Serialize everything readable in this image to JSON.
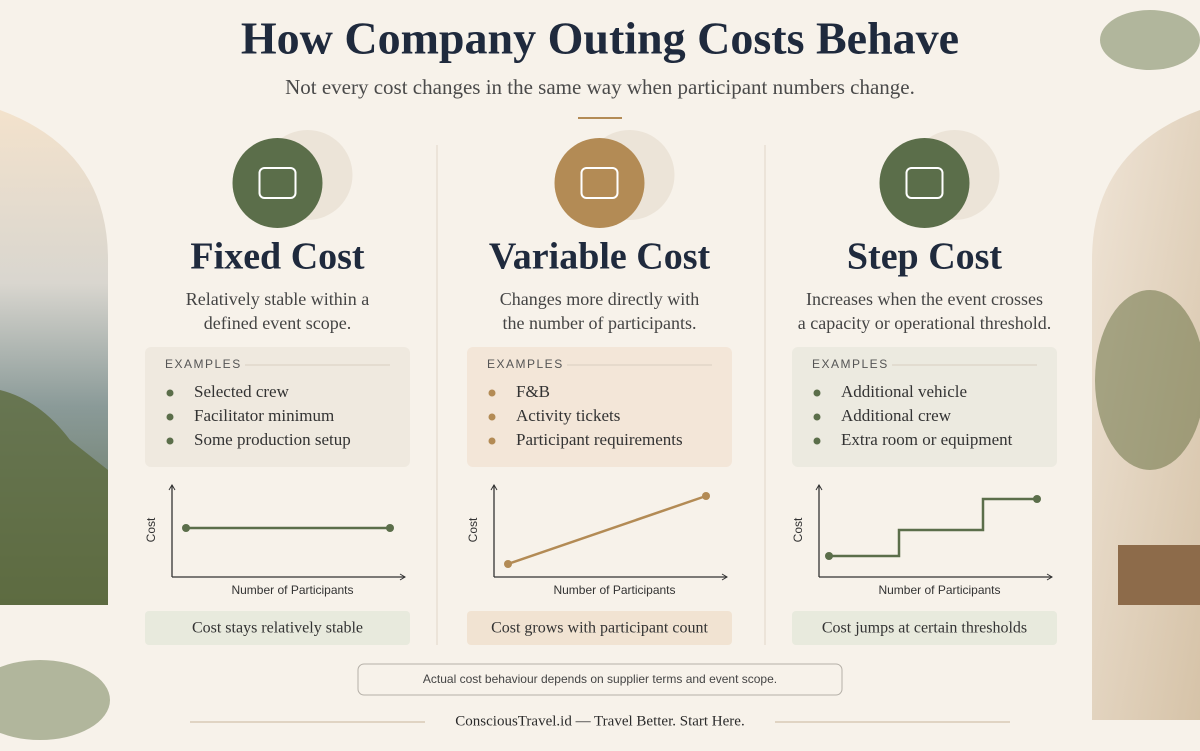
{
  "header": {
    "title": "How Company Outing Costs Behave",
    "subtitle": "Not every cost changes in the same way when participant numbers change."
  },
  "columns": [
    {
      "title": "Fixed Cost",
      "description": [
        "Relatively stable within a",
        "defined event scope."
      ],
      "examples_label": "EXAMPLES",
      "examples": [
        "Selected crew",
        "Facilitator minimum",
        "Some production setup"
      ],
      "y_label": "Cost",
      "x_label": "Number of Participants",
      "caption": "Cost stays relatively stable"
    },
    {
      "title": "Variable Cost",
      "description": [
        "Changes more directly with",
        "the number of participants."
      ],
      "examples_label": "EXAMPLES",
      "examples": [
        "F&B",
        "Activity tickets",
        "Participant requirements"
      ],
      "y_label": "Cost",
      "x_label": "Number of Participants",
      "caption": "Cost grows with participant count"
    },
    {
      "title": "Step Cost",
      "description": [
        "Increases when the event crosses",
        "a capacity or operational threshold."
      ],
      "examples_label": "EXAMPLES",
      "examples": [
        "Additional vehicle",
        "Additional crew",
        "Extra room or equipment"
      ],
      "y_label": "Cost",
      "x_label": "Number of Participants",
      "caption": "Cost jumps at certain thresholds"
    }
  ],
  "note": "Actual cost behaviour depends on supplier terms and event scope.",
  "footer": "ConsciousTravel.id — Travel Better. Start Here."
}
